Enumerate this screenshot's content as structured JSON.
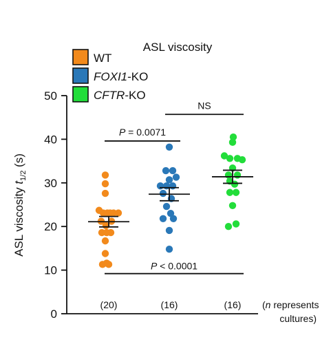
{
  "chart_data": {
    "type": "scatter",
    "title": "ASL viscosity",
    "ylabel": {
      "main": "ASL viscosity ",
      "var": "t",
      "sub": "1/2",
      "unit": " (s)"
    },
    "ylim": [
      0,
      50
    ],
    "yticks": [
      0,
      10,
      20,
      30,
      40,
      50
    ],
    "grid": false,
    "legend_position": "top-left",
    "categories": [
      "WT",
      "FOXI1-KO",
      "CFTR-KO"
    ],
    "series": [
      {
        "name": "WT",
        "name_parts": [
          {
            "text": "WT",
            "italic": false
          }
        ],
        "color": "#f28a1c",
        "n_label": "(20)",
        "mean": 21.1,
        "sem": 1.2,
        "points": [
          {
            "x": -0.1,
            "y": 31.8
          },
          {
            "x": -0.1,
            "y": 29.8
          },
          {
            "x": -0.1,
            "y": 27.6
          },
          {
            "x": -0.28,
            "y": 23.7
          },
          {
            "x": -0.16,
            "y": 23.1
          },
          {
            "x": -0.04,
            "y": 23.1
          },
          {
            "x": 0.04,
            "y": 23.1
          },
          {
            "x": 0.14,
            "y": 23.1
          },
          {
            "x": 0.28,
            "y": 23.1
          },
          {
            "x": -0.22,
            "y": 21.2
          },
          {
            "x": 0.08,
            "y": 21.2
          },
          {
            "x": -0.08,
            "y": 20.2
          },
          {
            "x": -0.2,
            "y": 18.6
          },
          {
            "x": -0.06,
            "y": 18.6
          },
          {
            "x": 0.06,
            "y": 18.6
          },
          {
            "x": -0.1,
            "y": 16.7
          },
          {
            "x": -0.1,
            "y": 13.8
          },
          {
            "x": -0.18,
            "y": 11.3
          },
          {
            "x": -0.06,
            "y": 11.6
          },
          {
            "x": 0.0,
            "y": 11.3
          }
        ]
      },
      {
        "name": "FOXI1-KO",
        "name_parts": [
          {
            "text": "FOXI1",
            "italic": true
          },
          {
            "text": "-KO",
            "italic": false
          }
        ],
        "color": "#2a78b8",
        "n_label": "(16)",
        "mean": 27.4,
        "sem": 1.5,
        "points": [
          {
            "x": 0.0,
            "y": 38.2
          },
          {
            "x": -0.1,
            "y": 32.8
          },
          {
            "x": 0.1,
            "y": 32.8
          },
          {
            "x": 0.2,
            "y": 31.3
          },
          {
            "x": 0.0,
            "y": 30.7
          },
          {
            "x": -0.26,
            "y": 29.3
          },
          {
            "x": -0.08,
            "y": 29.3
          },
          {
            "x": 0.1,
            "y": 29.3
          },
          {
            "x": -0.18,
            "y": 27.6
          },
          {
            "x": 0.06,
            "y": 26.4
          },
          {
            "x": -0.08,
            "y": 24.6
          },
          {
            "x": 0.04,
            "y": 23.0
          },
          {
            "x": -0.18,
            "y": 21.8
          },
          {
            "x": 0.12,
            "y": 21.8
          },
          {
            "x": 0.0,
            "y": 19.1
          },
          {
            "x": 0.0,
            "y": 14.8
          }
        ]
      },
      {
        "name": "CFTR-KO",
        "name_parts": [
          {
            "text": "CFTR",
            "italic": true
          },
          {
            "text": "-KO",
            "italic": false
          }
        ],
        "color": "#22dd3a",
        "n_label": "(16)",
        "mean": 31.4,
        "sem": 1.5,
        "points": [
          {
            "x": 0.02,
            "y": 40.5
          },
          {
            "x": 0.0,
            "y": 39.3
          },
          {
            "x": -0.24,
            "y": 36.2
          },
          {
            "x": -0.08,
            "y": 35.6
          },
          {
            "x": 0.14,
            "y": 35.6
          },
          {
            "x": 0.28,
            "y": 35.3
          },
          {
            "x": 0.0,
            "y": 33.4
          },
          {
            "x": -0.12,
            "y": 31.8
          },
          {
            "x": 0.14,
            "y": 31.8
          },
          {
            "x": -0.08,
            "y": 30.4
          },
          {
            "x": 0.06,
            "y": 29.7
          },
          {
            "x": 0.1,
            "y": 27.8
          },
          {
            "x": -0.08,
            "y": 27.8
          },
          {
            "x": 0.0,
            "y": 24.8
          },
          {
            "x": -0.12,
            "y": 20.0
          },
          {
            "x": 0.1,
            "y": 20.6
          }
        ]
      }
    ],
    "annotations": [
      {
        "label": "P = 0.0071",
        "italic_prefix": "P",
        "rest": " = 0.0071",
        "from": 0,
        "to": 1,
        "y": 39.6
      },
      {
        "label": "NS",
        "italic_prefix": "",
        "rest": "NS",
        "from": 1,
        "to": 2,
        "y": 45.7
      },
      {
        "label": "P < 0.0001",
        "italic_prefix": "P",
        "rest": " < 0.0001",
        "from": 0,
        "to": 2,
        "y": 9.2
      }
    ],
    "n_note": {
      "line1_italic": "n",
      "line1_rest": " represents",
      "line2": "cultures)",
      "open_paren": "("
    }
  }
}
